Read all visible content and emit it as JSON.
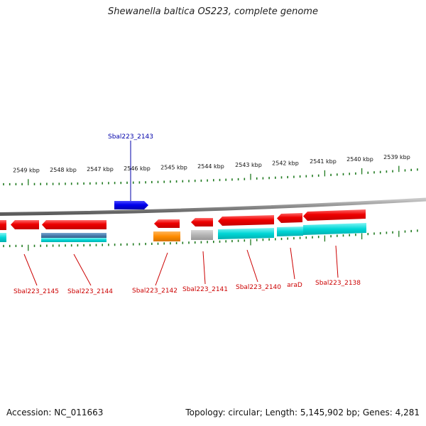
{
  "title": "Shewanella baltica OS223, complete genome",
  "footer": {
    "accession": "Accession: NC_011663",
    "stats": "Topology: circular; Length: 5,145,902 bp; Genes: 4,281"
  },
  "colors": {
    "forward_gene": "#0000ee",
    "reverse_gene": "#ee0000",
    "tick": "#1f7a1f",
    "backbone": "#888888",
    "label_reverse": "#cc0000",
    "label_forward": "#0000aa",
    "track_cyan": "#00d6d6",
    "track_steel": "#4a7fb0",
    "track_orange": "#ff8c00",
    "track_gray": "#b4b4b4"
  },
  "scale": {
    "unit": "kbp",
    "labels": [
      "2549 kbp",
      "2548 kbp",
      "2547 kbp",
      "2546 kbp",
      "2545 kbp",
      "2544 kbp",
      "2543 kbp",
      "2542 kbp",
      "2541 kbp",
      "2540 kbp",
      "2539 kbp"
    ]
  },
  "genes": [
    {
      "name": "Sbal223_2145",
      "strand": "reverse"
    },
    {
      "name": "Sbal223_2144",
      "strand": "reverse"
    },
    {
      "name": "Sbal223_2143",
      "strand": "forward"
    },
    {
      "name": "Sbal223_2142",
      "strand": "reverse"
    },
    {
      "name": "Sbal223_2141",
      "strand": "reverse"
    },
    {
      "name": "Sbal223_2140",
      "strand": "reverse"
    },
    {
      "name": "araD",
      "strand": "reverse"
    },
    {
      "name": "Sbal223_2138",
      "strand": "reverse"
    }
  ]
}
